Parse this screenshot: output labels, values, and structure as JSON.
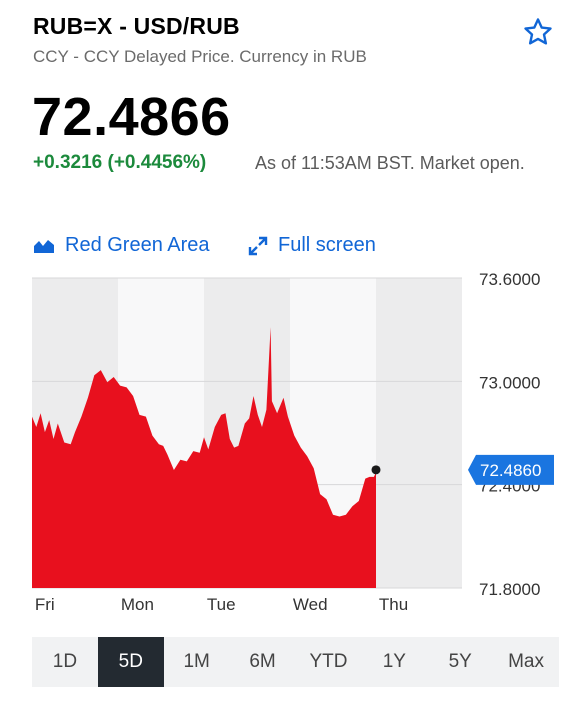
{
  "header": {
    "title": "RUB=X - USD/RUB",
    "subtitle": "CCY - CCY Delayed Price. Currency in RUB"
  },
  "quote": {
    "price": "72.4866",
    "change": "+0.3216 (+0.4456%)",
    "as_of": "As of 11:53AM BST. Market open."
  },
  "controls": {
    "mode_label": "Red Green Area",
    "fullscreen_label": "Full screen"
  },
  "ranges": {
    "items": [
      "1D",
      "5D",
      "1M",
      "6M",
      "YTD",
      "1Y",
      "5Y",
      "Max"
    ],
    "active": "5D"
  },
  "colors": {
    "area": "#e8101e",
    "accent": "#1166d6",
    "positive": "#1c8a3c",
    "current_tag": "#1a75e0"
  },
  "chart_data": {
    "type": "area",
    "x_tick_labels": [
      "Fri",
      "Mon",
      "Tue",
      "Wed",
      "Thu"
    ],
    "y_tick_labels": [
      "73.6000",
      "73.0000",
      "72.4000",
      "71.8000"
    ],
    "ylim": [
      71.8,
      73.6
    ],
    "current_value_label": "72.4860",
    "current_value": 72.486,
    "series": [
      {
        "values": [
          [
            0,
            72.78
          ],
          [
            0.1,
            72.75
          ],
          [
            0.2,
            72.8
          ],
          [
            0.3,
            72.72
          ],
          [
            0.4,
            72.76
          ],
          [
            0.5,
            72.68
          ],
          [
            0.6,
            72.74
          ],
          [
            0.75,
            72.66
          ],
          [
            0.9,
            72.62
          ],
          [
            1.0,
            72.72
          ],
          [
            1.15,
            72.78
          ],
          [
            1.3,
            72.92
          ],
          [
            1.45,
            73.02
          ],
          [
            1.6,
            73.08
          ],
          [
            1.75,
            72.98
          ],
          [
            1.9,
            73.04
          ],
          [
            2.05,
            72.96
          ],
          [
            2.2,
            72.98
          ],
          [
            2.35,
            72.9
          ],
          [
            2.5,
            72.82
          ],
          [
            2.65,
            72.78
          ],
          [
            2.8,
            72.7
          ],
          [
            2.95,
            72.62
          ],
          [
            3.05,
            72.64
          ],
          [
            3.15,
            72.56
          ],
          [
            3.3,
            72.5
          ],
          [
            3.45,
            72.53
          ],
          [
            3.6,
            72.55
          ],
          [
            3.75,
            72.58
          ],
          [
            3.9,
            72.6
          ],
          [
            4.0,
            72.66
          ],
          [
            4.1,
            72.62
          ],
          [
            4.25,
            72.72
          ],
          [
            4.4,
            72.82
          ],
          [
            4.5,
            72.8
          ],
          [
            4.6,
            72.68
          ],
          [
            4.7,
            72.6
          ],
          [
            4.8,
            72.64
          ],
          [
            4.95,
            72.74
          ],
          [
            5.05,
            72.8
          ],
          [
            5.15,
            72.9
          ],
          [
            5.25,
            72.82
          ],
          [
            5.35,
            72.72
          ],
          [
            5.45,
            72.85
          ],
          [
            5.55,
            73.3
          ],
          [
            5.58,
            72.9
          ],
          [
            5.7,
            72.8
          ],
          [
            5.85,
            72.92
          ],
          [
            5.95,
            72.78
          ],
          [
            6.1,
            72.7
          ],
          [
            6.25,
            72.6
          ],
          [
            6.4,
            72.58
          ],
          [
            6.55,
            72.48
          ],
          [
            6.7,
            72.36
          ],
          [
            6.85,
            72.3
          ],
          [
            7.0,
            72.24
          ],
          [
            7.15,
            72.2
          ],
          [
            7.3,
            72.24
          ],
          [
            7.45,
            72.26
          ],
          [
            7.6,
            72.32
          ],
          [
            7.75,
            72.42
          ],
          [
            7.85,
            72.46
          ],
          [
            7.95,
            72.43
          ],
          [
            8.0,
            72.486
          ]
        ]
      }
    ],
    "grid": true,
    "legend": "none"
  }
}
